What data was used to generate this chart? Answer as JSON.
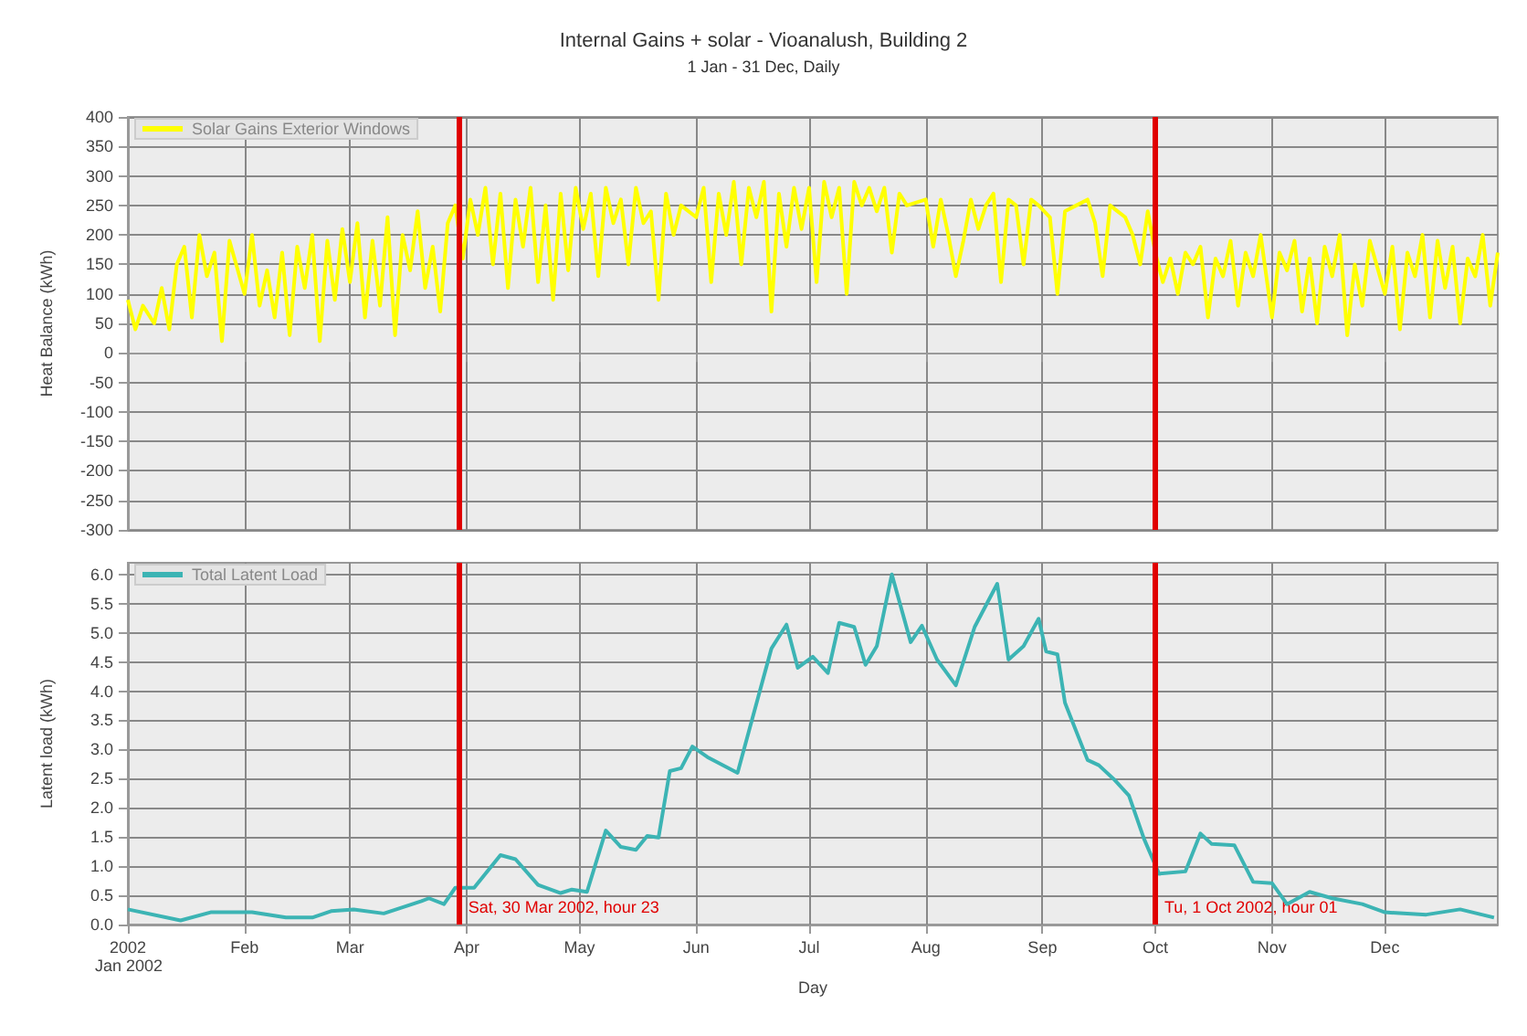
{
  "chart_data": [
    {
      "type": "line",
      "title": "Internal Gains + solar - Vioanalush, Building 2",
      "subtitle": "1 Jan - 31 Dec, Daily",
      "ylabel": "Heat Balance (kWh)",
      "x": [
        "2002-01-01",
        "2002-01-03",
        "2002-01-05",
        "2002-01-08",
        "2002-01-10",
        "2002-01-12",
        "2002-01-14",
        "2002-01-16",
        "2002-01-18",
        "2002-01-20",
        "2002-01-22",
        "2002-01-24",
        "2002-01-26",
        "2002-01-28",
        "2002-02-01",
        "2002-02-03",
        "2002-02-05",
        "2002-02-07",
        "2002-02-09",
        "2002-02-11",
        "2002-02-13",
        "2002-02-15",
        "2002-02-17",
        "2002-02-19",
        "2002-02-21",
        "2002-02-23",
        "2002-02-25",
        "2002-02-27",
        "2002-03-01",
        "2002-03-03",
        "2002-03-05",
        "2002-03-07",
        "2002-03-09",
        "2002-03-11",
        "2002-03-13",
        "2002-03-15",
        "2002-03-17",
        "2002-03-19",
        "2002-03-21",
        "2002-03-23",
        "2002-03-25",
        "2002-03-27",
        "2002-03-29",
        "2002-03-31",
        "2002-04-02",
        "2002-04-04",
        "2002-04-06",
        "2002-04-08",
        "2002-04-10",
        "2002-04-12",
        "2002-04-14",
        "2002-04-16",
        "2002-04-18",
        "2002-04-20",
        "2002-04-22",
        "2002-04-24",
        "2002-04-26",
        "2002-04-28",
        "2002-04-30",
        "2002-05-02",
        "2002-05-04",
        "2002-05-06",
        "2002-05-08",
        "2002-05-10",
        "2002-05-12",
        "2002-05-14",
        "2002-05-16",
        "2002-05-18",
        "2002-05-20",
        "2002-05-22",
        "2002-05-24",
        "2002-05-26",
        "2002-05-28",
        "2002-06-01",
        "2002-06-03",
        "2002-06-05",
        "2002-06-07",
        "2002-06-09",
        "2002-06-11",
        "2002-06-13",
        "2002-06-15",
        "2002-06-17",
        "2002-06-19",
        "2002-06-21",
        "2002-06-23",
        "2002-06-25",
        "2002-06-27",
        "2002-06-29",
        "2002-07-01",
        "2002-07-03",
        "2002-07-05",
        "2002-07-07",
        "2002-07-09",
        "2002-07-11",
        "2002-07-13",
        "2002-07-15",
        "2002-07-17",
        "2002-07-19",
        "2002-07-21",
        "2002-07-23",
        "2002-07-25",
        "2002-07-27",
        "2002-08-01",
        "2002-08-03",
        "2002-08-05",
        "2002-08-07",
        "2002-08-09",
        "2002-08-11",
        "2002-08-13",
        "2002-08-15",
        "2002-08-17",
        "2002-08-19",
        "2002-08-21",
        "2002-08-23",
        "2002-08-25",
        "2002-08-27",
        "2002-08-29",
        "2002-08-31",
        "2002-09-03",
        "2002-09-05",
        "2002-09-07",
        "2002-09-10",
        "2002-09-13",
        "2002-09-15",
        "2002-09-17",
        "2002-09-19",
        "2002-09-21",
        "2002-09-23",
        "2002-09-25",
        "2002-09-27",
        "2002-09-29",
        "2002-10-01",
        "2002-10-03",
        "2002-10-05",
        "2002-10-07",
        "2002-10-09",
        "2002-10-11",
        "2002-10-13",
        "2002-10-15",
        "2002-10-17",
        "2002-10-19",
        "2002-10-21",
        "2002-10-23",
        "2002-10-25",
        "2002-10-27",
        "2002-10-29",
        "2002-11-01",
        "2002-11-03",
        "2002-11-05",
        "2002-11-07",
        "2002-11-09",
        "2002-11-11",
        "2002-11-13",
        "2002-11-15",
        "2002-11-17",
        "2002-11-19",
        "2002-11-21",
        "2002-11-23",
        "2002-11-25",
        "2002-11-27",
        "2002-12-01",
        "2002-12-03",
        "2002-12-05",
        "2002-12-07",
        "2002-12-09",
        "2002-12-11",
        "2002-12-13",
        "2002-12-15",
        "2002-12-17",
        "2002-12-19",
        "2002-12-21",
        "2002-12-23",
        "2002-12-25",
        "2002-12-27",
        "2002-12-29",
        "2002-12-31"
      ],
      "series": [
        {
          "name": "Solar Gains Exterior Windows",
          "color": "#ffff00",
          "values": [
            90,
            40,
            80,
            50,
            110,
            40,
            150,
            180,
            60,
            200,
            130,
            170,
            20,
            190,
            100,
            200,
            80,
            140,
            60,
            170,
            30,
            180,
            110,
            200,
            20,
            190,
            90,
            210,
            120,
            220,
            60,
            190,
            80,
            230,
            30,
            200,
            140,
            240,
            110,
            180,
            70,
            220,
            250,
            160,
            260,
            200,
            280,
            150,
            270,
            110,
            260,
            180,
            280,
            120,
            250,
            90,
            270,
            140,
            280,
            210,
            270,
            130,
            280,
            220,
            260,
            150,
            280,
            220,
            240,
            90,
            270,
            200,
            250,
            230,
            280,
            120,
            270,
            200,
            290,
            150,
            280,
            230,
            290,
            70,
            270,
            180,
            280,
            210,
            280,
            120,
            290,
            230,
            280,
            100,
            290,
            250,
            280,
            240,
            280,
            170,
            270,
            250,
            260,
            180,
            260,
            200,
            130,
            190,
            260,
            210,
            250,
            270,
            120,
            260,
            250,
            150,
            260,
            250,
            230,
            100,
            240,
            250,
            260,
            220,
            130,
            250,
            240,
            230,
            200,
            150,
            240,
            170,
            120,
            160,
            100,
            170,
            150,
            180,
            60,
            160,
            130,
            190,
            80,
            170,
            130,
            200,
            60,
            170,
            140,
            190,
            70,
            160,
            50,
            180,
            130,
            200,
            30,
            150,
            80,
            190,
            100,
            180,
            40,
            170,
            130,
            200,
            60,
            190,
            110,
            180,
            50,
            160,
            130,
            200,
            80,
            170
          ]
        }
      ],
      "xlim": [
        "2002-01-01",
        "2002-12-31"
      ],
      "xticks": [
        {
          "value": "2002-01-01",
          "label": null
        },
        {
          "value": "2002-02-01",
          "label": null
        },
        {
          "value": "2002-03-01",
          "label": null
        },
        {
          "value": "2002-04-01",
          "label": null
        },
        {
          "value": "2002-05-01",
          "label": null
        },
        {
          "value": "2002-06-01",
          "label": null
        },
        {
          "value": "2002-07-01",
          "label": null
        },
        {
          "value": "2002-08-01",
          "label": null
        },
        {
          "value": "2002-09-01",
          "label": null
        },
        {
          "value": "2002-10-01",
          "label": null
        },
        {
          "value": "2002-11-01",
          "label": null
        },
        {
          "value": "2002-12-01",
          "label": null
        }
      ],
      "ylim": [
        -300,
        400
      ],
      "yticks": [
        -300,
        -250,
        -200,
        -150,
        -100,
        -50,
        0,
        50,
        100,
        150,
        200,
        250,
        300,
        350,
        400
      ],
      "ref_lines": [
        {
          "axis": "x",
          "value": "2002-03-30",
          "color": "#e00000"
        },
        {
          "axis": "x",
          "value": "2002-10-01",
          "color": "#e00000"
        }
      ],
      "tick_labels": "y",
      "grid": true,
      "legend": "top left",
      "marker": "none",
      "line_style": "solid"
    },
    {
      "type": "line",
      "xlabel": "Day",
      "ylabel": "Latent load (kWh)",
      "annotations": [
        "Jan 2002"
      ],
      "x": [
        "2002-01-01",
        "2002-01-15",
        "2002-01-23",
        "2002-02-03",
        "2002-02-12",
        "2002-02-19",
        "2002-02-24",
        "2002-03-02",
        "2002-03-10",
        "2002-03-20",
        "2002-03-22",
        "2002-03-26",
        "2002-03-29",
        "2002-04-03",
        "2002-04-10",
        "2002-04-14",
        "2002-04-20",
        "2002-04-26",
        "2002-04-29",
        "2002-05-03",
        "2002-05-08",
        "2002-05-12",
        "2002-05-16",
        "2002-05-19",
        "2002-05-22",
        "2002-05-25",
        "2002-05-28",
        "2002-05-31",
        "2002-06-04",
        "2002-06-12",
        "2002-06-21",
        "2002-06-25",
        "2002-06-28",
        "2002-07-02",
        "2002-07-06",
        "2002-07-09",
        "2002-07-13",
        "2002-07-16",
        "2002-07-19",
        "2002-07-23",
        "2002-07-28",
        "2002-07-31",
        "2002-08-04",
        "2002-08-09",
        "2002-08-14",
        "2002-08-20",
        "2002-08-23",
        "2002-08-27",
        "2002-08-31",
        "2002-09-02",
        "2002-09-05",
        "2002-09-07",
        "2002-09-13",
        "2002-09-16",
        "2002-09-20",
        "2002-09-24",
        "2002-09-28",
        "2002-10-02",
        "2002-10-09",
        "2002-10-13",
        "2002-10-16",
        "2002-10-22",
        "2002-10-27",
        "2002-11-01",
        "2002-11-05",
        "2002-11-11",
        "2002-11-17",
        "2002-11-25",
        "2002-12-01",
        "2002-12-12",
        "2002-12-21",
        "2002-12-30"
      ],
      "series": [
        {
          "name": "Total Latent Load",
          "color": "#3cb4b4",
          "values": [
            0.26,
            0.07,
            0.21,
            0.21,
            0.12,
            0.12,
            0.23,
            0.26,
            0.19,
            0.4,
            0.45,
            0.35,
            0.63,
            0.63,
            1.19,
            1.12,
            0.68,
            0.54,
            0.6,
            0.56,
            1.61,
            1.33,
            1.28,
            1.52,
            1.49,
            2.63,
            2.68,
            3.05,
            2.87,
            2.6,
            4.73,
            5.14,
            4.4,
            4.59,
            4.31,
            5.17,
            5.1,
            4.45,
            4.77,
            6.0,
            4.84,
            5.12,
            4.54,
            4.1,
            5.1,
            5.84,
            4.54,
            4.77,
            5.24,
            4.68,
            4.63,
            3.8,
            2.82,
            2.73,
            2.49,
            2.21,
            1.47,
            0.87,
            0.91,
            1.56,
            1.38,
            1.36,
            0.73,
            0.71,
            0.35,
            0.56,
            0.45,
            0.35,
            0.21,
            0.17,
            0.26,
            0.12
          ]
        }
      ],
      "xlim": [
        "2002-01-01",
        "2002-12-31"
      ],
      "xticks": [
        {
          "value": "2002-01-01",
          "label": "2002"
        },
        {
          "value": "2002-02-01",
          "label": "Feb"
        },
        {
          "value": "2002-03-01",
          "label": "Mar"
        },
        {
          "value": "2002-04-01",
          "label": "Apr"
        },
        {
          "value": "2002-05-01",
          "label": "May"
        },
        {
          "value": "2002-06-01",
          "label": "Jun"
        },
        {
          "value": "2002-07-01",
          "label": "Jul"
        },
        {
          "value": "2002-08-01",
          "label": "Aug"
        },
        {
          "value": "2002-09-01",
          "label": "Sep"
        },
        {
          "value": "2002-10-01",
          "label": "Oct"
        },
        {
          "value": "2002-11-01",
          "label": "Nov"
        },
        {
          "value": "2002-12-01",
          "label": "Dec"
        }
      ],
      "ylim": [
        0,
        6.2
      ],
      "yticks": [
        {
          "value": 0,
          "label": "0.0"
        },
        {
          "value": 0.5,
          "label": "0.5"
        },
        {
          "value": 1,
          "label": "1.0"
        },
        {
          "value": 1.5,
          "label": "1.5"
        },
        {
          "value": 2,
          "label": "2.0"
        },
        {
          "value": 2.5,
          "label": "2.5"
        },
        {
          "value": 3,
          "label": "3.0"
        },
        {
          "value": 3.5,
          "label": "3.5"
        },
        {
          "value": 4,
          "label": "4.0"
        },
        {
          "value": 4.5,
          "label": "4.5"
        },
        {
          "value": 5,
          "label": "5.0"
        },
        {
          "value": 5.5,
          "label": "5.5"
        },
        {
          "value": 6,
          "label": "6.0"
        }
      ],
      "ref_lines": [
        {
          "axis": "x",
          "value": "2002-03-30",
          "label": "Sat, 30 Mar 2002, hour 23",
          "color": "#e00000"
        },
        {
          "axis": "x",
          "value": "2002-10-01",
          "label": "Tu, 1 Oct 2002, hour 01",
          "color": "#e00000"
        }
      ],
      "grid": true,
      "legend": "top left",
      "marker": "none",
      "line_style": "solid"
    }
  ]
}
